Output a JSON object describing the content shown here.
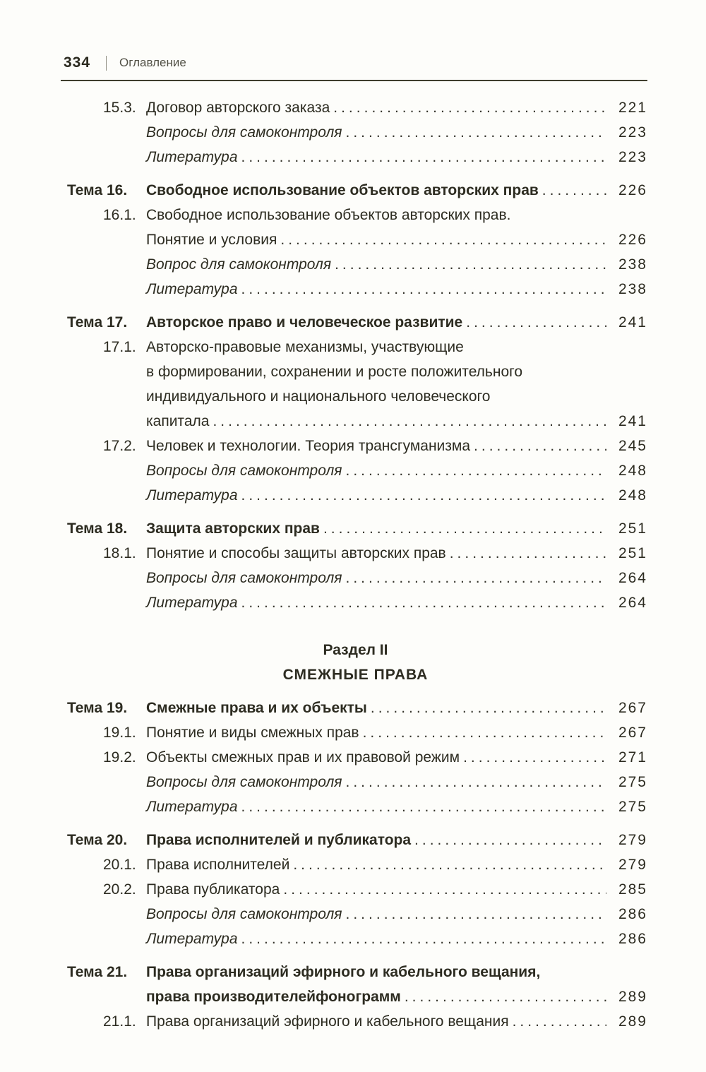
{
  "colors": {
    "ink": "#2d2c21",
    "muted_header": "#525146",
    "rule": "#3f3e2d",
    "background": "#fdfdfa"
  },
  "header": {
    "page_number": "334",
    "title": "Оглавление"
  },
  "toc": {
    "items": [
      {
        "type": "row",
        "style": "sub",
        "label": "15.3.",
        "text": "Договор авторского заказа",
        "page": "221"
      },
      {
        "type": "row",
        "style": "italic",
        "label": "",
        "text": "Вопросы для самоконтроля",
        "page": "223"
      },
      {
        "type": "row",
        "style": "italic",
        "label": "",
        "text": "Литература",
        "page": "223"
      },
      {
        "type": "row",
        "style": "theme",
        "label": "Тема 16.",
        "text": "Свободное использование объектов авторских прав",
        "page": "226",
        "gap": true
      },
      {
        "type": "row",
        "style": "sub",
        "label": "16.1.",
        "text": "Свободное использование объектов авторских прав.",
        "page": ""
      },
      {
        "type": "row",
        "style": "cont",
        "label": "",
        "text": "Понятие и условия",
        "page": "226"
      },
      {
        "type": "row",
        "style": "italic",
        "label": "",
        "text": "Вопрос для самоконтроля",
        "page": "238"
      },
      {
        "type": "row",
        "style": "italic",
        "label": "",
        "text": "Литература",
        "page": "238"
      },
      {
        "type": "row",
        "style": "theme",
        "label": "Тема 17.",
        "text": "Авторское право и человеческое развитие",
        "page": "241",
        "gap": true
      },
      {
        "type": "row",
        "style": "sub",
        "label": "17.1.",
        "text": "Авторско-правовые механизмы, участвующие",
        "page": ""
      },
      {
        "type": "row",
        "style": "cont",
        "label": "",
        "text": "в формировании, сохранении и росте положительного",
        "page": ""
      },
      {
        "type": "row",
        "style": "cont",
        "label": "",
        "text": "индивидуального и национального человеческого",
        "page": ""
      },
      {
        "type": "row",
        "style": "cont",
        "label": "",
        "text": "капитала",
        "page": "241"
      },
      {
        "type": "row",
        "style": "sub",
        "label": "17.2.",
        "text": "Человек и технологии. Теория трансгуманизма",
        "page": "245"
      },
      {
        "type": "row",
        "style": "italic",
        "label": "",
        "text": "Вопросы для самоконтроля",
        "page": "248"
      },
      {
        "type": "row",
        "style": "italic",
        "label": "",
        "text": "Литература",
        "page": "248"
      },
      {
        "type": "row",
        "style": "theme",
        "label": "Тема 18.",
        "text": "Защита авторских прав",
        "page": "251",
        "gap": true
      },
      {
        "type": "row",
        "style": "sub",
        "label": "18.1.",
        "text": "Понятие и способы защиты авторских прав",
        "page": "251"
      },
      {
        "type": "row",
        "style": "italic",
        "label": "",
        "text": "Вопросы для самоконтроля",
        "page": "264"
      },
      {
        "type": "row",
        "style": "italic",
        "label": "",
        "text": "Литература",
        "page": "264"
      },
      {
        "type": "divider",
        "title": "Раздел II",
        "subtitle": "СМЕЖНЫЕ ПРАВА"
      },
      {
        "type": "row",
        "style": "theme",
        "label": "Тема 19.",
        "text": "Смежные права и их объекты",
        "page": "267"
      },
      {
        "type": "row",
        "style": "sub",
        "label": "19.1.",
        "text": "Понятие и виды смежных прав",
        "page": "267"
      },
      {
        "type": "row",
        "style": "sub",
        "label": "19.2.",
        "text": "Объекты смежных прав и их правовой режим",
        "page": "271"
      },
      {
        "type": "row",
        "style": "italic",
        "label": "",
        "text": "Вопросы для самоконтроля",
        "page": "275"
      },
      {
        "type": "row",
        "style": "italic",
        "label": "",
        "text": "Литература",
        "page": "275"
      },
      {
        "type": "row",
        "style": "theme",
        "label": "Тема 20.",
        "text": "Права исполнителей и публикатора",
        "page": "279",
        "gap": true
      },
      {
        "type": "row",
        "style": "sub",
        "label": "20.1.",
        "text": "Права исполнителей",
        "page": "279"
      },
      {
        "type": "row",
        "style": "sub",
        "label": "20.2.",
        "text": "Права публикатора",
        "page": "285"
      },
      {
        "type": "row",
        "style": "italic",
        "label": "",
        "text": "Вопросы для самоконтроля",
        "page": "286"
      },
      {
        "type": "row",
        "style": "italic",
        "label": "",
        "text": "Литература",
        "page": "286"
      },
      {
        "type": "row",
        "style": "theme",
        "label": "Тема 21.",
        "text": "Права организаций эфирного и кабельного вещания,",
        "page": "",
        "gap": true
      },
      {
        "type": "row",
        "style": "theme-cont",
        "label": "",
        "text": "права производителейфонограмм",
        "page": "289"
      },
      {
        "type": "row",
        "style": "sub",
        "label": "21.1.",
        "text": "Права организаций эфирного и кабельного вещания",
        "page": "289"
      }
    ]
  }
}
